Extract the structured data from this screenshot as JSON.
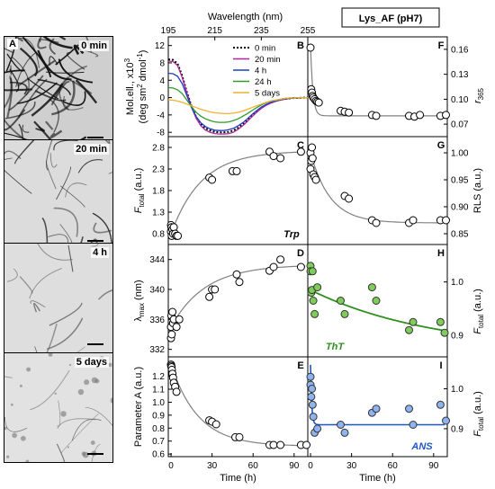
{
  "title": "Lys_AF (pH7)",
  "micrographs": [
    {
      "panel": "A",
      "label": "0 min"
    },
    {
      "panel": "",
      "label": "20 min"
    },
    {
      "panel": "",
      "label": "4 h"
    },
    {
      "panel": "",
      "label": "5 days"
    }
  ],
  "axes": {
    "wavelength_label": "Wavelength (nm)",
    "time_label": "Time (h)",
    "B_ylabel_1": "Mol.ell., x10",
    "B_ylabel_exp": "3",
    "B_ylabel_2": "(deg sm",
    "B_ylabel_2b": "2",
    "B_ylabel_2c": " dmol",
    "B_ylabel_2d": "-1",
    "B_ylabel_2e": ")",
    "C_ylabel_main": "F",
    "C_ylabel_sub": "total",
    "C_ylabel_tail": " (a.u.)",
    "D_ylabel_main": "λ",
    "D_ylabel_sub": "max",
    "D_ylabel_tail": " (nm)",
    "E_ylabel": "Parameter A (a.u.)",
    "F_ylabel_main": "r",
    "F_ylabel_sub": "365",
    "G_ylabel": "RLS (a.u.)",
    "H_ylabel_main": "F",
    "H_ylabel_sub": "total",
    "H_ylabel_tail": " (a.u.)",
    "I_ylabel_main": "F",
    "I_ylabel_sub": "total",
    "I_ylabel_tail": " (a.u.)"
  },
  "tags": {
    "C": "Trp",
    "H": "ThT",
    "I": "ANS"
  },
  "colors": {
    "0min": "#000000",
    "20min": "#b0259a",
    "4h": "#1f3fbf",
    "24h": "#2e9a2e",
    "5days": "#f0b030",
    "fit": "#808080",
    "tht_fill": "#7fcc5a",
    "tht_line": "#2f8f1f",
    "ans_fill": "#8fb3ee",
    "ans_line": "#1f56c4",
    "ans_text": "#1f56c4",
    "tht_text": "#2f8f1f"
  },
  "chart_data": [
    {
      "panel": "B",
      "type": "line",
      "xlabel": "Wavelength (nm)",
      "xlim": [
        195,
        255
      ],
      "xticks": [
        195,
        215,
        235,
        255
      ],
      "ylim": [
        -9,
        14
      ],
      "yticks": [
        -8,
        -4,
        0,
        4,
        8,
        12
      ],
      "series": [
        {
          "name": "0 min",
          "color": "#000000",
          "dotted": true,
          "x": [
            195,
            197,
            199,
            201,
            203,
            205,
            207,
            209,
            211,
            213,
            215,
            217,
            219,
            221,
            223,
            225,
            227,
            229,
            231,
            233,
            235,
            237,
            239,
            241,
            243,
            245,
            247,
            249,
            251,
            253,
            255
          ],
          "y": [
            8.8,
            8.7,
            7.8,
            5.0,
            1.2,
            -2.0,
            -4.5,
            -6.1,
            -7.1,
            -7.6,
            -7.9,
            -8.0,
            -8.0,
            -7.9,
            -7.6,
            -7.0,
            -6.2,
            -5.2,
            -4.2,
            -3.2,
            -2.4,
            -1.7,
            -1.2,
            -0.8,
            -0.5,
            -0.3,
            -0.2,
            -0.1,
            -0.1,
            0.0,
            0.0
          ]
        },
        {
          "name": "20 min",
          "color": "#b0259a",
          "x": [
            195,
            197,
            199,
            201,
            203,
            205,
            207,
            209,
            211,
            213,
            215,
            217,
            219,
            221,
            223,
            225,
            227,
            229,
            231,
            233,
            235,
            237,
            239,
            241,
            243,
            245,
            247,
            249,
            251,
            253,
            255
          ],
          "y": [
            8.4,
            8.3,
            7.4,
            4.6,
            1.0,
            -2.2,
            -4.8,
            -6.5,
            -7.5,
            -8.0,
            -8.3,
            -8.4,
            -8.4,
            -8.3,
            -8.0,
            -7.3,
            -6.5,
            -5.5,
            -4.4,
            -3.4,
            -2.5,
            -1.8,
            -1.3,
            -0.9,
            -0.6,
            -0.4,
            -0.2,
            -0.1,
            -0.1,
            0.0,
            0.0
          ]
        },
        {
          "name": "4 h",
          "color": "#1f3fbf",
          "x": [
            195,
            197,
            199,
            201,
            203,
            205,
            207,
            209,
            211,
            213,
            215,
            217,
            219,
            221,
            223,
            225,
            227,
            229,
            231,
            233,
            235,
            237,
            239,
            241,
            243,
            245,
            247,
            249,
            251,
            253,
            255
          ],
          "y": [
            5.6,
            5.5,
            4.9,
            3.2,
            0.4,
            -2.3,
            -4.4,
            -5.8,
            -6.7,
            -7.2,
            -7.5,
            -7.6,
            -7.6,
            -7.4,
            -7.1,
            -6.5,
            -5.8,
            -4.9,
            -3.9,
            -3.0,
            -2.2,
            -1.6,
            -1.1,
            -0.8,
            -0.5,
            -0.3,
            -0.2,
            -0.1,
            -0.1,
            0.0,
            0.0
          ]
        },
        {
          "name": "24 h",
          "color": "#2e9a2e",
          "x": [
            195,
            197,
            199,
            201,
            203,
            205,
            207,
            209,
            211,
            213,
            215,
            217,
            219,
            221,
            223,
            225,
            227,
            229,
            231,
            233,
            235,
            237,
            239,
            241,
            243,
            245,
            247,
            249,
            251,
            253,
            255
          ],
          "y": [
            2.3,
            2.2,
            1.8,
            0.9,
            -0.6,
            -2.1,
            -3.4,
            -4.3,
            -4.9,
            -5.3,
            -5.6,
            -5.7,
            -5.7,
            -5.6,
            -5.3,
            -4.9,
            -4.3,
            -3.7,
            -3.0,
            -2.3,
            -1.7,
            -1.2,
            -0.8,
            -0.6,
            -0.4,
            -0.2,
            -0.1,
            -0.1,
            0.0,
            0.0,
            0.0
          ]
        },
        {
          "name": "5 days",
          "color": "#f0b030",
          "x": [
            195,
            197,
            199,
            201,
            203,
            205,
            207,
            209,
            211,
            213,
            215,
            217,
            219,
            221,
            223,
            225,
            227,
            229,
            231,
            233,
            235,
            237,
            239,
            241,
            243,
            245,
            247,
            249,
            251,
            253,
            255
          ],
          "y": [
            -0.5,
            -0.6,
            -0.8,
            -1.1,
            -1.5,
            -1.9,
            -2.3,
            -2.7,
            -3.0,
            -3.3,
            -3.5,
            -3.6,
            -3.7,
            -3.7,
            -3.6,
            -3.4,
            -3.1,
            -2.7,
            -2.3,
            -1.9,
            -1.5,
            -1.1,
            -0.8,
            -0.6,
            -0.4,
            -0.2,
            -0.1,
            -0.1,
            0.0,
            0.0,
            0.0
          ]
        }
      ]
    },
    {
      "panel": "C",
      "type": "scatter",
      "ylim": [
        0.55,
        3.05
      ],
      "yticks": [
        0.8,
        1.3,
        1.8,
        2.3,
        2.8
      ],
      "xlim": [
        -2,
        100
      ],
      "points_x": [
        0,
        0,
        0.3,
        0.5,
        1,
        1.5,
        2,
        3,
        4,
        5,
        28,
        30,
        45,
        48,
        72,
        75,
        80,
        95
      ],
      "points_y": [
        1.0,
        0.85,
        0.95,
        0.75,
        0.9,
        0.8,
        0.95,
        0.8,
        0.75,
        0.75,
        2.1,
        2.05,
        2.25,
        2.25,
        2.7,
        2.6,
        2.55,
        2.7
      ],
      "fit": {
        "model": "rise",
        "y0": 0.8,
        "ymax": 2.72,
        "k": 0.045
      }
    },
    {
      "panel": "D",
      "type": "scatter",
      "ylim": [
        331,
        346
      ],
      "yticks": [
        332,
        336,
        340,
        344
      ],
      "xlim": [
        -2,
        100
      ],
      "points_x": [
        0,
        0,
        0.3,
        0.5,
        1,
        1.5,
        2,
        4,
        6,
        28,
        30,
        32,
        48,
        50,
        72,
        75,
        80,
        95
      ],
      "points_y": [
        335,
        333.5,
        336.5,
        334,
        337,
        335.5,
        336,
        335,
        336,
        339,
        340,
        340,
        342,
        341,
        342.5,
        343,
        344,
        343
      ],
      "fit": {
        "model": "rise",
        "y0": 335,
        "ymax": 343.3,
        "k": 0.04
      }
    },
    {
      "panel": "E",
      "type": "scatter",
      "ylim": [
        0.58,
        1.35
      ],
      "yticks": [
        0.6,
        0.7,
        0.8,
        0.9,
        1.0,
        1.1,
        1.2
      ],
      "xlim": [
        -2,
        100
      ],
      "xticks": [
        0,
        30,
        60,
        90
      ],
      "points_x": [
        0,
        0.2,
        0.4,
        0.6,
        1,
        1.5,
        2,
        3,
        4,
        28,
        30,
        33,
        47,
        50,
        72,
        75,
        80,
        95,
        99
      ],
      "points_y": [
        1.29,
        1.28,
        1.27,
        1.25,
        1.22,
        1.19,
        1.15,
        1.12,
        1.08,
        0.86,
        0.85,
        0.83,
        0.73,
        0.73,
        0.67,
        0.67,
        0.67,
        0.67,
        0.67
      ],
      "fit": {
        "model": "decay",
        "y0": 1.29,
        "yinf": 0.66,
        "k": 0.05
      }
    },
    {
      "panel": "F",
      "type": "scatter",
      "ylim": [
        0.055,
        0.175
      ],
      "yticks": [
        0.07,
        0.1,
        0.13,
        0.16
      ],
      "xlim": [
        -2,
        100
      ],
      "points_x": [
        0,
        0.5,
        1,
        1.5,
        2,
        3,
        4,
        5,
        6,
        22,
        25,
        28,
        45,
        48,
        72,
        76,
        80,
        95,
        99
      ],
      "points_y": [
        0.162,
        0.112,
        0.108,
        0.104,
        0.102,
        0.1,
        0.098,
        0.097,
        0.096,
        0.086,
        0.085,
        0.084,
        0.081,
        0.08,
        0.08,
        0.079,
        0.081,
        0.08,
        0.081
      ],
      "fit": {
        "model": "decay",
        "y0": 0.165,
        "yinf": 0.08,
        "k": 0.6
      }
    },
    {
      "panel": "G",
      "type": "scatter",
      "ylim": [
        0.83,
        1.03
      ],
      "yticks": [
        0.85,
        0.9,
        0.95,
        1.0
      ],
      "xlim": [
        -2,
        100
      ],
      "points_x": [
        0,
        0,
        0.5,
        1,
        1.5,
        2,
        3,
        4,
        25,
        28,
        45,
        48,
        72,
        75,
        95,
        99
      ],
      "points_y": [
        1.0,
        0.97,
        0.985,
        1.01,
        0.99,
        0.96,
        0.955,
        0.95,
        0.92,
        0.915,
        0.875,
        0.87,
        0.87,
        0.875,
        0.875,
        0.875
      ],
      "fit": {
        "model": "decay",
        "y0": 1.0,
        "yinf": 0.87,
        "k": 0.07
      }
    },
    {
      "panel": "H",
      "type": "scatter",
      "ylim": [
        0.86,
        1.07
      ],
      "yticks": [
        0.9,
        1.0
      ],
      "xlim": [
        -2,
        100
      ],
      "points_x": [
        0,
        0,
        0.5,
        1,
        1.5,
        2,
        3,
        5,
        22,
        25,
        45,
        48,
        72,
        75,
        95,
        98
      ],
      "points_y": [
        1.03,
        1.02,
        0.98,
        0.985,
        1.02,
        0.965,
        0.94,
        0.99,
        0.965,
        0.94,
        0.99,
        0.965,
        0.91,
        0.925,
        0.925,
        0.905
      ],
      "fit": {
        "model": "decay",
        "y0": 0.985,
        "yinf": 0.87,
        "k": 0.011
      }
    },
    {
      "panel": "I",
      "type": "scatter",
      "ylim": [
        0.83,
        1.08
      ],
      "yticks": [
        0.9,
        1.0
      ],
      "xlim": [
        -2,
        100
      ],
      "points_x": [
        0,
        0,
        0.5,
        1,
        1.5,
        2,
        3,
        5,
        22,
        25,
        45,
        48,
        72,
        75,
        95,
        99
      ],
      "points_y": [
        1.03,
        1.01,
        0.98,
        1.0,
        0.96,
        0.93,
        0.89,
        0.9,
        0.91,
        0.89,
        0.94,
        0.95,
        0.95,
        0.91,
        0.96,
        0.92
      ],
      "fit": {
        "model": "decay",
        "y0": 1.06,
        "yinf": 0.91,
        "k": 1.2
      }
    }
  ]
}
